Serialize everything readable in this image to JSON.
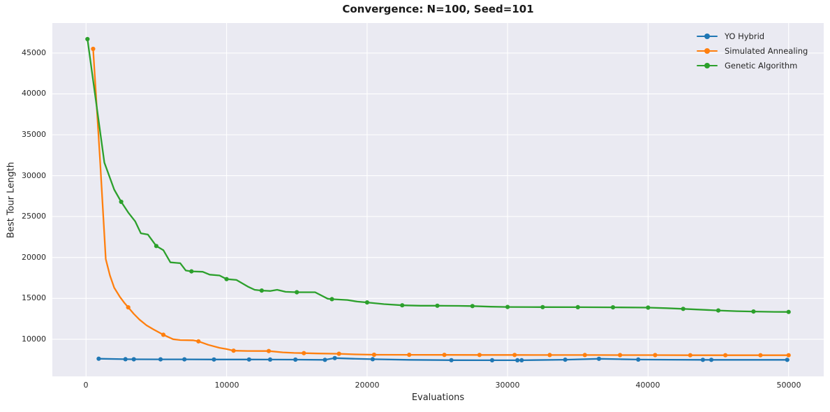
{
  "chart_data": {
    "type": "line",
    "title": "Convergence: N=100, Seed=101",
    "xlabel": "Evaluations",
    "ylabel": "Best Tour Length",
    "xlim": [
      -2400,
      52500
    ],
    "ylim": [
      5460,
      48660
    ],
    "grid": true,
    "background_color": "#eaeaf2",
    "grid_color": "#ffffff",
    "legend_position": "upper right",
    "x_ticks": [
      {
        "label": "0",
        "value": 0
      },
      {
        "label": "10000",
        "value": 10000
      },
      {
        "label": "20000",
        "value": 20000
      },
      {
        "label": "30000",
        "value": 30000
      },
      {
        "label": "40000",
        "value": 40000
      },
      {
        "label": "50000",
        "value": 50000
      }
    ],
    "y_ticks": [
      {
        "label": "10000",
        "value": 10000
      },
      {
        "label": "15000",
        "value": 15000
      },
      {
        "label": "20000",
        "value": 20000
      },
      {
        "label": "25000",
        "value": 25000
      },
      {
        "label": "30000",
        "value": 30000
      },
      {
        "label": "35000",
        "value": 35000
      },
      {
        "label": "40000",
        "value": 40000
      },
      {
        "label": "45000",
        "value": 45000
      }
    ],
    "series": [
      {
        "name": "YO Hybrid",
        "color": "#1f77b4",
        "points": [
          [
            900,
            7620
          ],
          [
            2800,
            7560
          ],
          [
            3400,
            7555
          ],
          [
            5300,
            7545
          ],
          [
            7000,
            7540
          ],
          [
            9100,
            7530
          ],
          [
            11600,
            7525
          ],
          [
            13100,
            7520
          ],
          [
            14900,
            7510
          ],
          [
            17000,
            7480
          ],
          [
            17700,
            7700
          ],
          [
            19000,
            7620
          ],
          [
            20400,
            7560
          ],
          [
            23000,
            7480
          ],
          [
            26000,
            7440
          ],
          [
            28900,
            7430
          ],
          [
            30700,
            7430
          ],
          [
            31000,
            7430
          ],
          [
            34100,
            7500
          ],
          [
            36500,
            7610
          ],
          [
            38000,
            7560
          ],
          [
            39300,
            7520
          ],
          [
            41500,
            7500
          ],
          [
            43900,
            7480
          ],
          [
            44500,
            7480
          ],
          [
            47000,
            7480
          ],
          [
            49900,
            7480
          ],
          [
            50000,
            7480
          ]
        ],
        "markers": [
          [
            900,
            7620
          ],
          [
            2800,
            7560
          ],
          [
            3400,
            7555
          ],
          [
            5300,
            7545
          ],
          [
            7000,
            7540
          ],
          [
            9100,
            7530
          ],
          [
            11600,
            7525
          ],
          [
            13100,
            7520
          ],
          [
            14900,
            7510
          ],
          [
            17000,
            7480
          ],
          [
            17700,
            7700
          ],
          [
            20400,
            7560
          ],
          [
            26000,
            7440
          ],
          [
            28900,
            7430
          ],
          [
            30700,
            7430
          ],
          [
            31000,
            7430
          ],
          [
            34100,
            7500
          ],
          [
            36500,
            7610
          ],
          [
            39300,
            7520
          ],
          [
            43900,
            7480
          ],
          [
            44500,
            7480
          ],
          [
            49900,
            7480
          ]
        ]
      },
      {
        "name": "Simulated Annealing",
        "color": "#ff7f0e",
        "points": [
          [
            500,
            45500
          ],
          [
            1000,
            31800
          ],
          [
            1400,
            19800
          ],
          [
            1700,
            17800
          ],
          [
            2000,
            16300
          ],
          [
            2400,
            15200
          ],
          [
            2700,
            14500
          ],
          [
            3000,
            13900
          ],
          [
            3400,
            13100
          ],
          [
            3800,
            12400
          ],
          [
            4300,
            11700
          ],
          [
            4800,
            11200
          ],
          [
            5500,
            10550
          ],
          [
            6200,
            10000
          ],
          [
            6700,
            9900
          ],
          [
            7600,
            9870
          ],
          [
            8000,
            9750
          ],
          [
            8700,
            9320
          ],
          [
            9500,
            8950
          ],
          [
            10000,
            8800
          ],
          [
            10500,
            8600
          ],
          [
            11500,
            8570
          ],
          [
            13000,
            8560
          ],
          [
            14000,
            8400
          ],
          [
            14800,
            8330
          ],
          [
            15500,
            8300
          ],
          [
            16500,
            8260
          ],
          [
            18000,
            8230
          ],
          [
            19200,
            8150
          ],
          [
            20500,
            8110
          ],
          [
            23000,
            8100
          ],
          [
            25500,
            8090
          ],
          [
            28000,
            8080
          ],
          [
            30500,
            8080
          ],
          [
            33000,
            8070
          ],
          [
            35500,
            8070
          ],
          [
            38000,
            8060
          ],
          [
            40500,
            8060
          ],
          [
            43000,
            8050
          ],
          [
            45500,
            8050
          ],
          [
            48000,
            8050
          ],
          [
            50000,
            8050
          ]
        ],
        "markers": [
          [
            500,
            45500
          ],
          [
            3000,
            13900
          ],
          [
            5500,
            10550
          ],
          [
            8000,
            9750
          ],
          [
            10500,
            8600
          ],
          [
            13000,
            8560
          ],
          [
            15500,
            8300
          ],
          [
            18000,
            8230
          ],
          [
            20500,
            8110
          ],
          [
            23000,
            8100
          ],
          [
            25500,
            8090
          ],
          [
            28000,
            8080
          ],
          [
            30500,
            8080
          ],
          [
            33000,
            8070
          ],
          [
            35500,
            8070
          ],
          [
            38000,
            8060
          ],
          [
            40500,
            8060
          ],
          [
            43000,
            8050
          ],
          [
            45500,
            8050
          ],
          [
            48000,
            8050
          ],
          [
            50000,
            8050
          ]
        ]
      },
      {
        "name": "Genetic Algorithm",
        "color": "#2ca02c",
        "points": [
          [
            100,
            46700
          ],
          [
            1300,
            31600
          ],
          [
            2000,
            28300
          ],
          [
            2500,
            26800
          ],
          [
            3000,
            25500
          ],
          [
            3500,
            24400
          ],
          [
            3900,
            22950
          ],
          [
            4400,
            22800
          ],
          [
            5000,
            21400
          ],
          [
            5500,
            20900
          ],
          [
            6000,
            19400
          ],
          [
            6700,
            19300
          ],
          [
            7100,
            18400
          ],
          [
            7500,
            18300
          ],
          [
            8300,
            18250
          ],
          [
            8800,
            17900
          ],
          [
            9500,
            17800
          ],
          [
            10000,
            17350
          ],
          [
            10700,
            17250
          ],
          [
            11500,
            16450
          ],
          [
            12000,
            16050
          ],
          [
            12500,
            15950
          ],
          [
            13100,
            15900
          ],
          [
            13600,
            16050
          ],
          [
            14200,
            15800
          ],
          [
            15000,
            15750
          ],
          [
            16300,
            15750
          ],
          [
            17200,
            14950
          ],
          [
            17500,
            14900
          ],
          [
            18600,
            14800
          ],
          [
            19300,
            14600
          ],
          [
            20000,
            14500
          ],
          [
            21200,
            14300
          ],
          [
            22500,
            14150
          ],
          [
            23800,
            14100
          ],
          [
            25000,
            14100
          ],
          [
            26500,
            14080
          ],
          [
            27500,
            14060
          ],
          [
            28800,
            13980
          ],
          [
            30000,
            13950
          ],
          [
            32500,
            13930
          ],
          [
            35000,
            13920
          ],
          [
            37500,
            13900
          ],
          [
            40000,
            13870
          ],
          [
            41300,
            13800
          ],
          [
            42500,
            13720
          ],
          [
            44000,
            13600
          ],
          [
            45000,
            13520
          ],
          [
            46300,
            13430
          ],
          [
            47500,
            13390
          ],
          [
            49000,
            13350
          ],
          [
            50000,
            13340
          ]
        ],
        "markers": [
          [
            100,
            46700
          ],
          [
            2500,
            26800
          ],
          [
            5000,
            21400
          ],
          [
            7500,
            18300
          ],
          [
            10000,
            17350
          ],
          [
            12500,
            15950
          ],
          [
            15000,
            15750
          ],
          [
            17500,
            14900
          ],
          [
            20000,
            14500
          ],
          [
            22500,
            14150
          ],
          [
            25000,
            14100
          ],
          [
            27500,
            14060
          ],
          [
            30000,
            13950
          ],
          [
            32500,
            13930
          ],
          [
            35000,
            13920
          ],
          [
            37500,
            13900
          ],
          [
            40000,
            13870
          ],
          [
            42500,
            13720
          ],
          [
            45000,
            13520
          ],
          [
            47500,
            13390
          ],
          [
            50000,
            13340
          ]
        ]
      }
    ]
  }
}
